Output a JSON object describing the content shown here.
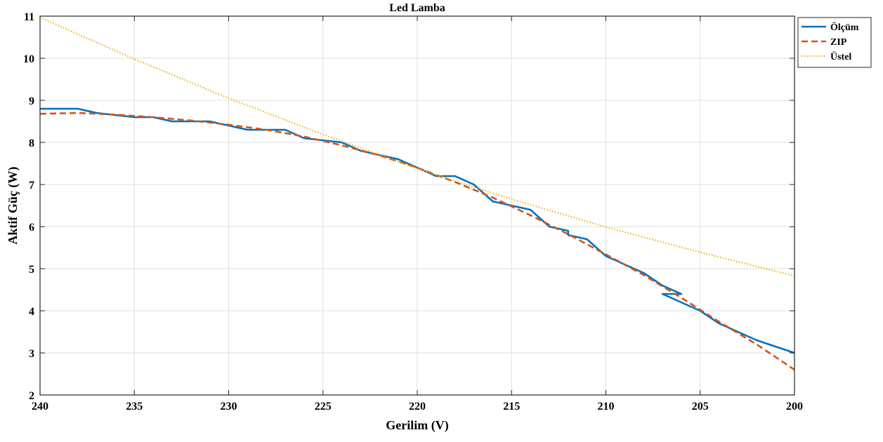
{
  "chart_data": {
    "type": "line",
    "title": "Led Lamba",
    "xlabel": "Gerilim (V)",
    "ylabel": "Aktif Güç (W)",
    "xlim": [
      240,
      200
    ],
    "x_reversed": true,
    "ylim": [
      2,
      11
    ],
    "xticks": [
      240,
      235,
      230,
      225,
      220,
      215,
      210,
      205,
      200
    ],
    "yticks": [
      2,
      3,
      4,
      5,
      6,
      7,
      8,
      9,
      10,
      11
    ],
    "grid": true,
    "legend_position": "top-right",
    "series": [
      {
        "name": "Ölçüm",
        "color": "#0072BD",
        "style": "solid",
        "x": [
          240,
          238,
          237,
          235,
          234,
          233,
          232,
          231,
          230,
          229,
          228,
          227,
          226,
          225,
          224,
          223,
          222,
          221,
          220,
          219,
          218,
          217,
          216.5,
          216,
          215,
          214,
          213,
          212.5,
          212,
          212,
          211.5,
          211,
          210,
          209,
          208,
          207,
          206,
          207,
          206,
          205,
          204,
          203,
          202,
          201,
          200
        ],
        "y": [
          8.8,
          8.8,
          8.7,
          8.6,
          8.6,
          8.5,
          8.5,
          8.5,
          8.4,
          8.3,
          8.3,
          8.3,
          8.1,
          8.05,
          8.0,
          7.8,
          7.7,
          7.6,
          7.4,
          7.2,
          7.2,
          7.0,
          6.8,
          6.6,
          6.5,
          6.4,
          6.0,
          5.95,
          5.9,
          5.8,
          5.75,
          5.7,
          5.3,
          5.1,
          4.9,
          4.6,
          4.4,
          4.4,
          4.2,
          4.0,
          3.7,
          3.5,
          3.3,
          3.15,
          3.0
        ]
      },
      {
        "name": "ZIP",
        "color": "#D95319",
        "style": "dashed",
        "x": [
          240,
          238,
          236,
          234,
          232,
          230,
          228,
          226,
          224,
          222,
          220,
          218,
          216,
          214,
          212,
          210,
          208,
          206,
          204,
          202,
          200
        ],
        "y": [
          8.68,
          8.7,
          8.66,
          8.6,
          8.52,
          8.42,
          8.3,
          8.14,
          7.93,
          7.69,
          7.4,
          7.06,
          6.69,
          6.27,
          5.82,
          5.34,
          4.85,
          4.31,
          3.74,
          3.2,
          2.6
        ]
      },
      {
        "name": "Üstel",
        "color": "#EDB120",
        "style": "dotted",
        "x": [
          240,
          235,
          230,
          225,
          220,
          215,
          210,
          205,
          200
        ],
        "y": [
          10.97,
          9.98,
          9.05,
          8.19,
          7.38,
          6.65,
          5.99,
          5.39,
          4.83
        ]
      }
    ]
  }
}
